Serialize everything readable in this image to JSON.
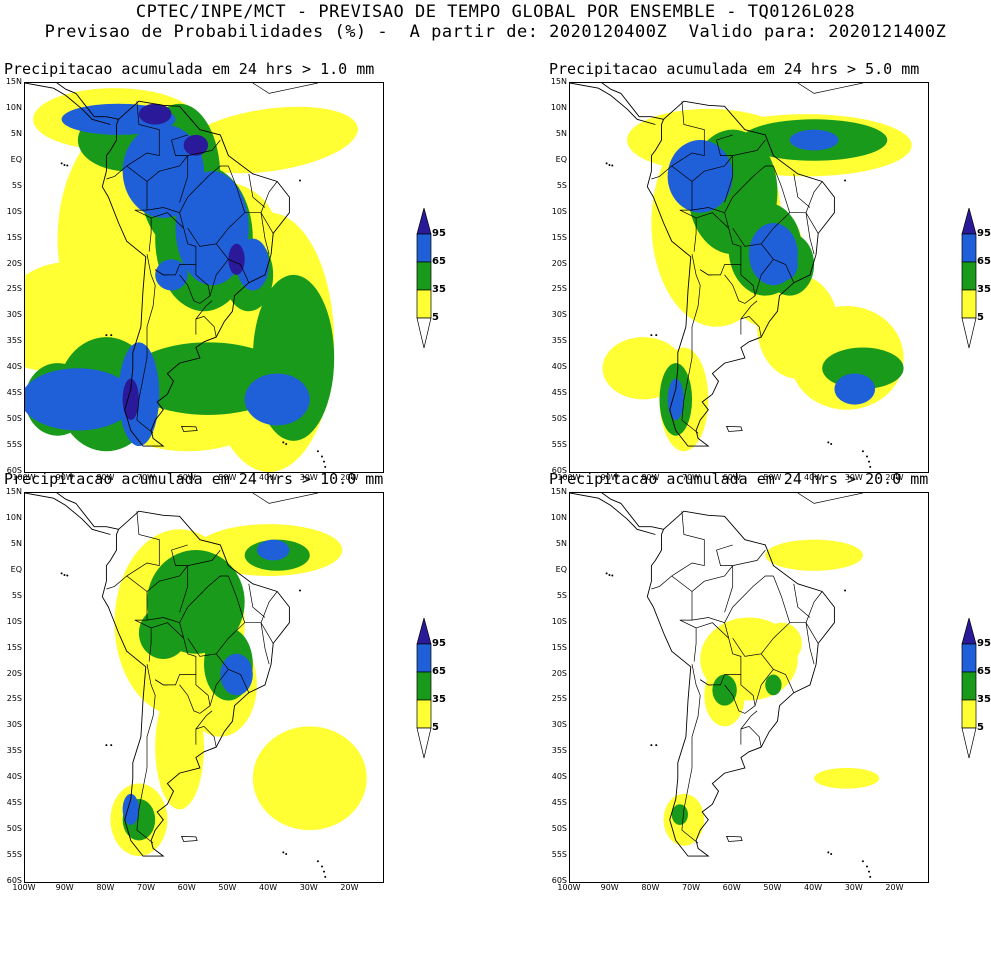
{
  "header": {
    "line1": "CPTEC/INPE/MCT - PREVISAO DE TEMPO GLOBAL POR ENSEMBLE - TQ0126L028",
    "line2": "Previsao de Probabilidades (%) -  A partir de: 2020120400Z  Valido para: 2020121400Z"
  },
  "panels": [
    {
      "title": "Precipitacao acumulada em 24 hrs > 1.0 mm"
    },
    {
      "title": "Precipitacao acumulada em 24 hrs > 5.0 mm"
    },
    {
      "title": "Precipitacao acumulada em 24 hrs > 10.0 mm"
    },
    {
      "title": "Precipitacao acumulada em 24 hrs > 20.0 mm"
    }
  ],
  "axes": {
    "lat_labels": [
      "15N",
      "10N",
      "5N",
      "EQ",
      "5S",
      "10S",
      "15S",
      "20S",
      "25S",
      "30S",
      "35S",
      "40S",
      "45S",
      "50S",
      "55S",
      "60S"
    ],
    "lon_labels": [
      "100W",
      "90W",
      "80W",
      "70W",
      "60W",
      "50W",
      "40W",
      "30W",
      "20W"
    ]
  },
  "legend": {
    "labels": [
      "95",
      "65",
      "35",
      "5"
    ],
    "colors": {
      "5": "#ffff33",
      "35": "#1a9a1a",
      "65": "#1f5fd8",
      "95": "#2a1a9a"
    }
  }
}
